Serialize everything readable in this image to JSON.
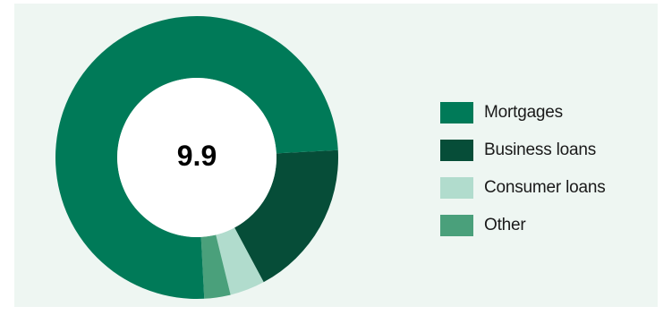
{
  "chart_data": {
    "type": "pie",
    "center_label": "9.9",
    "categories": [
      "Mortgages",
      "Business loans",
      "Consumer loans",
      "Other"
    ],
    "values": [
      75,
      18,
      4,
      3
    ],
    "colors": [
      "#007a58",
      "#064d38",
      "#b1dccd",
      "#4aa07b"
    ],
    "legend_position": "right"
  }
}
